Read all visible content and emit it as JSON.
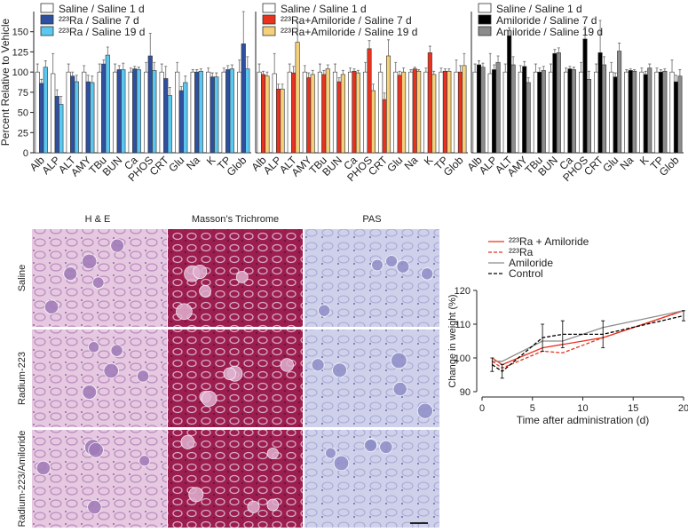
{
  "chart_data": [
    {
      "type": "bar",
      "ylabel": "Percent Relative to Vehicle",
      "categories": [
        "Alb",
        "ALP",
        "ALT",
        "AMY",
        "TBu",
        "BUN",
        "Ca",
        "PHOS",
        "CRT",
        "Glu",
        "Na",
        "K",
        "TP",
        "Glob"
      ],
      "ylim": [
        0,
        175
      ],
      "yticks": [
        0,
        25,
        50,
        75,
        100,
        125,
        150
      ],
      "series": [
        {
          "name": "Saline / Saline 1 d",
          "color": "#ffffff",
          "values": [
            100,
            98,
            100,
            100,
            100,
            100,
            100,
            100,
            100,
            100,
            100,
            100,
            100,
            100
          ],
          "errors": [
            10,
            25,
            10,
            8,
            10,
            10,
            5,
            12,
            10,
            12,
            3,
            5,
            5,
            15
          ]
        },
        {
          "name": "²²³Ra / Saline 7 d",
          "color": "#2f4fa0",
          "values": [
            86,
            70,
            95,
            88,
            110,
            103,
            104,
            120,
            92,
            77,
            100,
            94,
            103,
            135
          ],
          "errors": [
            5,
            8,
            5,
            8,
            5,
            5,
            3,
            28,
            15,
            5,
            3,
            5,
            5,
            40
          ]
        },
        {
          "name": "²²³Ra / Saline 19 d",
          "color": "#5bc8f0",
          "values": [
            106,
            60,
            88,
            87,
            121,
            103,
            103,
            102,
            71,
            87,
            101,
            94,
            104,
            104
          ],
          "errors": [
            8,
            10,
            8,
            8,
            10,
            8,
            3,
            10,
            10,
            8,
            3,
            5,
            5,
            15
          ]
        }
      ]
    },
    {
      "type": "bar",
      "categories": [
        "Alb",
        "ALP",
        "ALT",
        "AMY",
        "TBu",
        "BUN",
        "Ca",
        "PHOS",
        "CRT",
        "Glu",
        "Na",
        "K",
        "TP",
        "Glob"
      ],
      "ylim": [
        0,
        175
      ],
      "series": [
        {
          "name": "Saline / Saline 1 d",
          "color": "#ffffff",
          "values": [
            100,
            98,
            100,
            100,
            100,
            100,
            100,
            100,
            100,
            100,
            100,
            100,
            100,
            100
          ],
          "errors": [
            10,
            25,
            10,
            8,
            10,
            10,
            5,
            12,
            10,
            12,
            3,
            5,
            5,
            15
          ]
        },
        {
          "name": "²²³Ra+Amiloride / Saline 7 d",
          "color": "#e8321e",
          "values": [
            97,
            79,
            99,
            93,
            97,
            88,
            101,
            129,
            66,
            96,
            104,
            124,
            101,
            100
          ],
          "errors": [
            4,
            6,
            8,
            6,
            5,
            5,
            3,
            10,
            8,
            5,
            2,
            8,
            3,
            8
          ]
        },
        {
          "name": "²²³Ra+Amiloride / Saline 19 d",
          "color": "#f5d07a",
          "values": [
            95,
            79,
            137,
            97,
            104,
            97,
            99,
            77,
            120,
            100,
            101,
            97,
            101,
            108
          ],
          "errors": [
            5,
            6,
            25,
            5,
            5,
            5,
            3,
            8,
            20,
            5,
            2,
            4,
            3,
            15
          ]
        }
      ]
    },
    {
      "type": "bar",
      "categories": [
        "Alb",
        "ALP",
        "ALT",
        "AMY",
        "TBu",
        "BUN",
        "Ca",
        "PHOS",
        "CRT",
        "Glu",
        "Na",
        "K",
        "TP",
        "Glob"
      ],
      "ylim": [
        0,
        175
      ],
      "series": [
        {
          "name": "Saline / Saline 1 d",
          "color": "#ffffff",
          "values": [
            100,
            98,
            100,
            100,
            100,
            100,
            100,
            100,
            100,
            100,
            100,
            100,
            100,
            100
          ],
          "errors": [
            10,
            25,
            10,
            8,
            10,
            10,
            5,
            12,
            10,
            12,
            3,
            5,
            5,
            15
          ]
        },
        {
          "name": "Amiloride / Saline 7 d",
          "color": "#000000",
          "values": [
            109,
            103,
            145,
            107,
            100,
            123,
            104,
            141,
            124,
            94,
            102,
            97,
            100,
            88
          ],
          "errors": [
            5,
            6,
            10,
            6,
            5,
            5,
            3,
            15,
            40,
            5,
            2,
            4,
            3,
            8
          ]
        },
        {
          "name": "Amiloride / Saline 19 d",
          "color": "#8c8c8c",
          "values": [
            106,
            112,
            109,
            87,
            102,
            124,
            103,
            91,
            109,
            126,
            101,
            105,
            101,
            95
          ],
          "errors": [
            5,
            8,
            10,
            6,
            5,
            6,
            3,
            10,
            10,
            10,
            2,
            5,
            3,
            8
          ]
        }
      ]
    },
    {
      "type": "line",
      "xlabel": "Time after administration (d)",
      "ylabel": "Change in weight (%)",
      "x": [
        1,
        2,
        6,
        8,
        12,
        20
      ],
      "xlim": [
        0,
        20
      ],
      "xticks": [
        0,
        5,
        10,
        15,
        20
      ],
      "ylim": [
        90,
        120
      ],
      "yticks": [
        90,
        100,
        110,
        120
      ],
      "series": [
        {
          "name": "²²³Ra + Amiloride",
          "color": "#e8321e",
          "dash": false,
          "values": [
            100,
            98,
            103,
            104,
            106,
            114
          ]
        },
        {
          "name": "²²³Ra",
          "color": "#e8321e",
          "dash": true,
          "values": [
            99,
            97,
            102,
            101.5,
            106,
            114
          ]
        },
        {
          "name": "Amiloride",
          "color": "#8c8c8c",
          "dash": false,
          "values": [
            99,
            99,
            105,
            105,
            109,
            114
          ]
        },
        {
          "name": "Control",
          "color": "#000000",
          "dash": true,
          "values": [
            98,
            96,
            106,
            107,
            107,
            112.5
          ],
          "errors": [
            2,
            2,
            4,
            4,
            4,
            1.5
          ]
        }
      ]
    }
  ],
  "histology": {
    "columns": [
      "H & E",
      "Masson’s Trichrome",
      "PAS"
    ],
    "rows": [
      "Saline",
      "Radium-223",
      "Radium-223/Amiloride"
    ]
  }
}
